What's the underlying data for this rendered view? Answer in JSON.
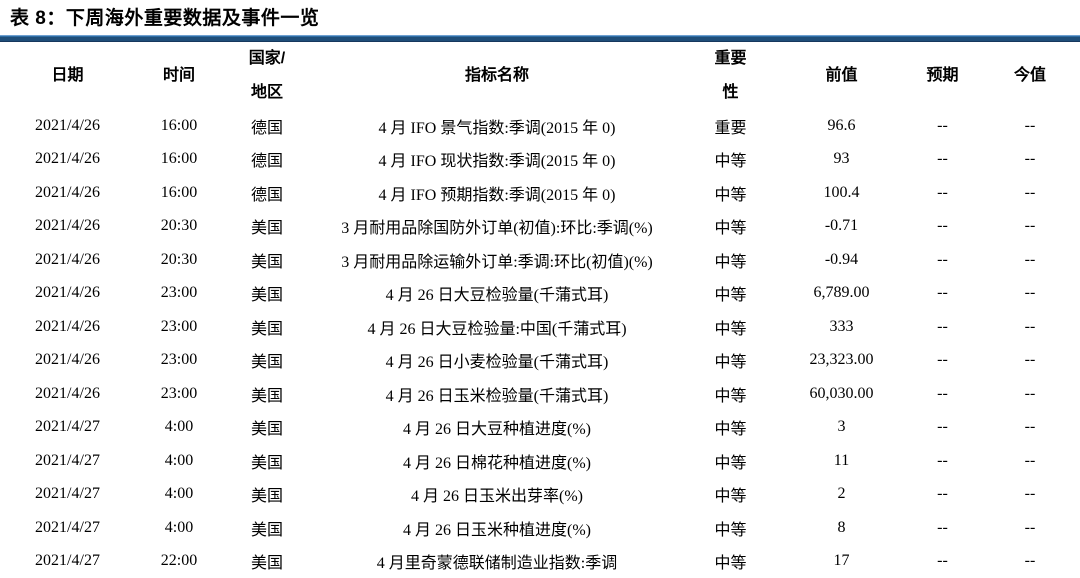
{
  "title": "表 8：下周海外重要数据及事件一览",
  "colors": {
    "rule_dark_blue": "#1F4E79",
    "rule_light_blue": "#6FA0D0",
    "text": "#000000",
    "background": "#ffffff"
  },
  "table": {
    "headers": [
      "日期",
      "时间",
      "国家/\n地区",
      "指标名称",
      "重要\n性",
      "前值",
      "预期",
      "今值"
    ],
    "col_keys": [
      "date",
      "time",
      "region",
      "indicator",
      "importance",
      "prior",
      "forecast",
      "current"
    ],
    "rows": [
      [
        "2021/4/26",
        "16:00",
        "德国",
        "4 月 IFO 景气指数:季调(2015 年 0)",
        "重要",
        "96.6",
        "--",
        "--"
      ],
      [
        "2021/4/26",
        "16:00",
        "德国",
        "4 月 IFO 现状指数:季调(2015 年 0)",
        "中等",
        "93",
        "--",
        "--"
      ],
      [
        "2021/4/26",
        "16:00",
        "德国",
        "4 月 IFO 预期指数:季调(2015 年 0)",
        "中等",
        "100.4",
        "--",
        "--"
      ],
      [
        "2021/4/26",
        "20:30",
        "美国",
        "3 月耐用品除国防外订单(初值):环比:季调(%)",
        "中等",
        "-0.71",
        "--",
        "--"
      ],
      [
        "2021/4/26",
        "20:30",
        "美国",
        "3 月耐用品除运输外订单:季调:环比(初值)(%)",
        "中等",
        "-0.94",
        "--",
        "--"
      ],
      [
        "2021/4/26",
        "23:00",
        "美国",
        "4 月 26 日大豆检验量(千蒲式耳)",
        "中等",
        "6,789.00",
        "--",
        "--"
      ],
      [
        "2021/4/26",
        "23:00",
        "美国",
        "4 月 26 日大豆检验量:中国(千蒲式耳)",
        "中等",
        "333",
        "--",
        "--"
      ],
      [
        "2021/4/26",
        "23:00",
        "美国",
        "4 月 26 日小麦检验量(千蒲式耳)",
        "中等",
        "23,323.00",
        "--",
        "--"
      ],
      [
        "2021/4/26",
        "23:00",
        "美国",
        "4 月 26 日玉米检验量(千蒲式耳)",
        "中等",
        "60,030.00",
        "--",
        "--"
      ],
      [
        "2021/4/27",
        "4:00",
        "美国",
        "4 月 26 日大豆种植进度(%)",
        "中等",
        "3",
        "--",
        "--"
      ],
      [
        "2021/4/27",
        "4:00",
        "美国",
        "4 月 26 日棉花种植进度(%)",
        "中等",
        "11",
        "--",
        "--"
      ],
      [
        "2021/4/27",
        "4:00",
        "美国",
        "4 月 26 日玉米出芽率(%)",
        "中等",
        "2",
        "--",
        "--"
      ],
      [
        "2021/4/27",
        "4:00",
        "美国",
        "4 月 26 日玉米种植进度(%)",
        "中等",
        "8",
        "--",
        "--"
      ],
      [
        "2021/4/27",
        "22:00",
        "美国",
        "4 月里奇蒙德联储制造业指数:季调",
        "中等",
        "17",
        "--",
        "--"
      ]
    ]
  }
}
